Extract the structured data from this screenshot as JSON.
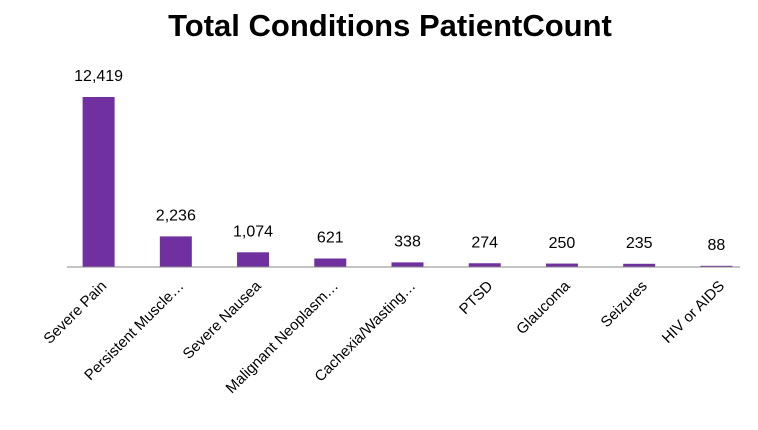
{
  "chart_data": {
    "type": "bar",
    "title": "Total Conditions PatientCount",
    "categories": [
      "Severe Pain",
      "Persistent Muscle…",
      "Severe Nausea",
      "Malignant Neoplasm…",
      "Cachexia/Wasting…",
      "PTSD",
      "Glaucoma",
      "Seizures",
      "HIV or AIDS"
    ],
    "values": [
      12419,
      2236,
      1074,
      621,
      338,
      274,
      250,
      235,
      88
    ],
    "value_labels": [
      "12,419",
      "2,236",
      "1,074",
      "621",
      "338",
      "274",
      "250",
      "235",
      "88"
    ],
    "color": "#7030a0"
  }
}
